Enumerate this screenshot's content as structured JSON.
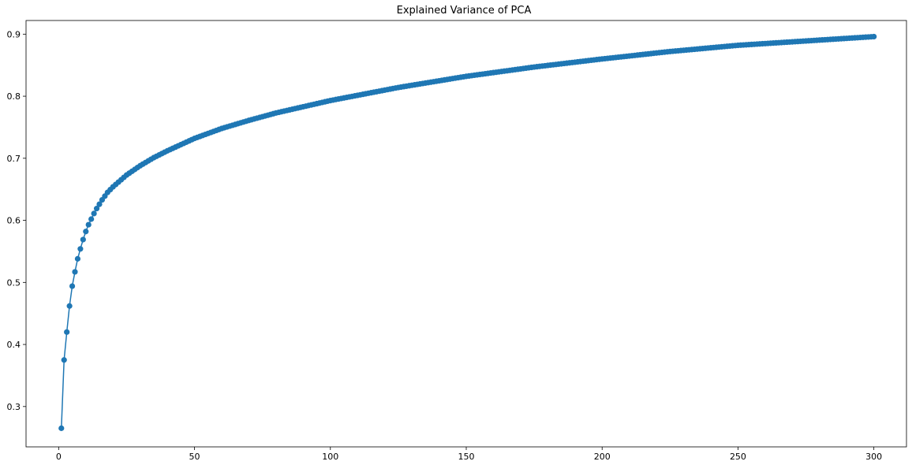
{
  "chart_data": {
    "type": "line",
    "title": "Explained Variance of PCA",
    "xlabel": "",
    "ylabel": "",
    "xlim": [
      -12,
      312
    ],
    "ylim": [
      0.235,
      0.922
    ],
    "xticks": [
      0,
      50,
      100,
      150,
      200,
      250,
      300
    ],
    "yticks": [
      0.3,
      0.4,
      0.5,
      0.6,
      0.7,
      0.8,
      0.9
    ],
    "grid": false,
    "legend": "none",
    "series": [
      {
        "color": "#1f77b4",
        "marker": "circle",
        "x_start": 1,
        "x_end": 300,
        "x_step": 1,
        "anchors": [
          [
            1,
            0.265
          ],
          [
            2,
            0.375
          ],
          [
            3,
            0.42
          ],
          [
            4,
            0.462
          ],
          [
            5,
            0.494
          ],
          [
            6,
            0.517
          ],
          [
            7,
            0.538
          ],
          [
            8,
            0.554
          ],
          [
            9,
            0.569
          ],
          [
            10,
            0.582
          ],
          [
            11,
            0.593
          ],
          [
            12,
            0.602
          ],
          [
            13,
            0.611
          ],
          [
            14,
            0.619
          ],
          [
            15,
            0.626
          ],
          [
            16,
            0.633
          ],
          [
            17,
            0.639
          ],
          [
            18,
            0.645
          ],
          [
            20,
            0.654
          ],
          [
            25,
            0.673
          ],
          [
            30,
            0.688
          ],
          [
            35,
            0.701
          ],
          [
            40,
            0.712
          ],
          [
            45,
            0.722
          ],
          [
            50,
            0.732
          ],
          [
            60,
            0.748
          ],
          [
            70,
            0.761
          ],
          [
            80,
            0.773
          ],
          [
            90,
            0.783
          ],
          [
            100,
            0.793
          ],
          [
            125,
            0.814
          ],
          [
            150,
            0.832
          ],
          [
            175,
            0.847
          ],
          [
            200,
            0.86
          ],
          [
            225,
            0.872
          ],
          [
            250,
            0.882
          ],
          [
            275,
            0.889
          ],
          [
            300,
            0.896
          ]
        ]
      }
    ]
  }
}
